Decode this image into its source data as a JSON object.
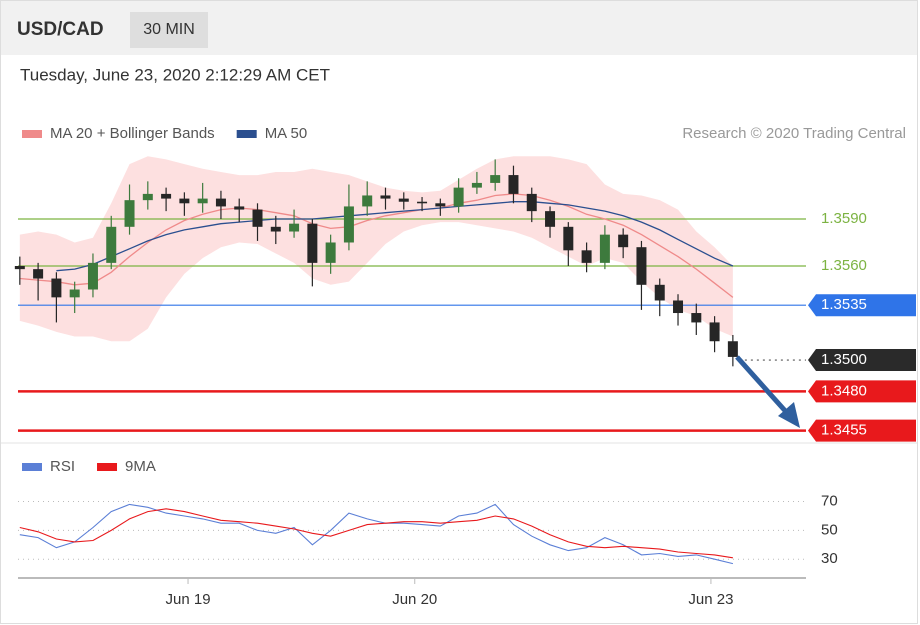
{
  "header": {
    "symbol": "USD/CAD",
    "interval": "30 MIN",
    "timestamp": "Tuesday, June 23, 2020 2:12:29 AM CET"
  },
  "chart_data": [
    {
      "type": "candlestick",
      "credit": "Research © 2020 Trading Central",
      "up_color": "#3d7a3d",
      "down_color": "#262626",
      "xlim": [
        -0.1,
        43
      ],
      "ylim": [
        1.3449,
        1.3634
      ],
      "open": [
        1.356,
        1.3558,
        1.3552,
        1.354,
        1.3545,
        1.3562,
        1.3585,
        1.3602,
        1.3606,
        1.3603,
        1.36,
        1.3603,
        1.3598,
        1.3596,
        1.3585,
        1.3582,
        1.3587,
        1.3562,
        1.3575,
        1.3598,
        1.3605,
        1.3603,
        1.3601,
        1.36,
        1.3598,
        1.361,
        1.3613,
        1.3618,
        1.3606,
        1.3595,
        1.3585,
        1.357,
        1.3562,
        1.358,
        1.3572,
        1.3548,
        1.3538,
        1.353,
        1.3524,
        1.3512
      ],
      "high": [
        1.3566,
        1.3562,
        1.3556,
        1.355,
        1.3568,
        1.3592,
        1.3612,
        1.3614,
        1.361,
        1.3607,
        1.3613,
        1.3608,
        1.3603,
        1.36,
        1.3592,
        1.3596,
        1.359,
        1.358,
        1.3612,
        1.3614,
        1.361,
        1.3607,
        1.3604,
        1.3603,
        1.3616,
        1.362,
        1.3628,
        1.3624,
        1.361,
        1.3598,
        1.3588,
        1.3575,
        1.3586,
        1.3584,
        1.3576,
        1.3552,
        1.3542,
        1.3536,
        1.3528,
        1.3516
      ],
      "low": [
        1.3548,
        1.3538,
        1.3524,
        1.353,
        1.354,
        1.3558,
        1.358,
        1.3596,
        1.3595,
        1.3592,
        1.3594,
        1.359,
        1.3588,
        1.3576,
        1.3574,
        1.3578,
        1.3547,
        1.3555,
        1.357,
        1.3592,
        1.3596,
        1.3596,
        1.3595,
        1.3592,
        1.3594,
        1.3606,
        1.3608,
        1.36,
        1.3588,
        1.3578,
        1.356,
        1.3556,
        1.3558,
        1.3565,
        1.3532,
        1.3528,
        1.3522,
        1.3516,
        1.3505,
        1.3496
      ],
      "close": [
        1.3558,
        1.3552,
        1.354,
        1.3545,
        1.3562,
        1.3585,
        1.3602,
        1.3606,
        1.3603,
        1.36,
        1.3603,
        1.3598,
        1.3596,
        1.3585,
        1.3582,
        1.3587,
        1.3562,
        1.3575,
        1.3598,
        1.3605,
        1.3603,
        1.3601,
        1.36,
        1.3598,
        1.361,
        1.3613,
        1.3618,
        1.3606,
        1.3595,
        1.3585,
        1.357,
        1.3562,
        1.358,
        1.3572,
        1.3548,
        1.3538,
        1.353,
        1.3524,
        1.3512,
        1.3502
      ],
      "overlays": [
        {
          "name": "MA 20 + Bollinger Bands",
          "color": "#ef8a8a",
          "band_color": "#fde0e0",
          "values": [
            1.3552,
            1.3551,
            1.355,
            1.3548,
            1.3549,
            1.3556,
            1.3566,
            1.3575,
            1.3583,
            1.3589,
            1.3593,
            1.3596,
            1.3597,
            1.3596,
            1.3594,
            1.3592,
            1.3587,
            1.3584,
            1.3585,
            1.3589,
            1.3592,
            1.3594,
            1.3596,
            1.3597,
            1.36,
            1.3602,
            1.3605,
            1.3606,
            1.3605,
            1.3602,
            1.3598,
            1.3593,
            1.359,
            1.3586,
            1.358,
            1.3573,
            1.3566,
            1.3558,
            1.3549,
            1.354
          ],
          "upper": [
            1.358,
            1.3582,
            1.358,
            1.3575,
            1.3578,
            1.36,
            1.3625,
            1.363,
            1.3628,
            1.3625,
            1.3622,
            1.362,
            1.3618,
            1.3618,
            1.362,
            1.362,
            1.3622,
            1.362,
            1.3618,
            1.3614,
            1.361,
            1.3608,
            1.3607,
            1.3608,
            1.3615,
            1.3622,
            1.3628,
            1.363,
            1.363,
            1.363,
            1.3628,
            1.3625,
            1.3612,
            1.3606,
            1.3605,
            1.3602,
            1.3596,
            1.3582,
            1.3572,
            1.356
          ],
          "lower": [
            1.3525,
            1.3522,
            1.3518,
            1.3515,
            1.3515,
            1.3512,
            1.3512,
            1.352,
            1.354,
            1.3555,
            1.3565,
            1.3572,
            1.3575,
            1.3574,
            1.3568,
            1.3562,
            1.3552,
            1.3548,
            1.355,
            1.3562,
            1.3574,
            1.3582,
            1.3586,
            1.3588,
            1.3588,
            1.3586,
            1.3584,
            1.3582,
            1.3578,
            1.3572,
            1.3566,
            1.356,
            1.3565,
            1.3562,
            1.355,
            1.354,
            1.3532,
            1.3528,
            1.352,
            1.3515
          ]
        },
        {
          "name": "MA 50",
          "color": "#2b4f8f",
          "values": [
            null,
            null,
            1.3557,
            1.3558,
            1.3561,
            1.3566,
            1.3571,
            1.3576,
            1.358,
            1.3583,
            1.3585,
            1.3587,
            1.3588,
            1.3589,
            1.359,
            1.359,
            1.359,
            1.3591,
            1.3592,
            1.3593,
            1.3594,
            1.3595,
            1.3596,
            1.3597,
            1.3598,
            1.3599,
            1.36,
            1.3601,
            1.3601,
            1.36,
            1.3599,
            1.3597,
            1.3595,
            1.3592,
            1.3588,
            1.3583,
            1.3577,
            1.3571,
            1.3565,
            1.356
          ]
        }
      ],
      "levels": [
        {
          "value": 1.359,
          "label": "1.3590",
          "color": "#7cb342",
          "line": "thin",
          "boxed": false
        },
        {
          "value": 1.356,
          "label": "1.3560",
          "color": "#7cb342",
          "line": "thin",
          "boxed": false
        },
        {
          "value": 1.3535,
          "label": "1.3535",
          "color": "#2f74e8",
          "line": "thin",
          "boxed": true
        },
        {
          "value": 1.35,
          "label": "1.3500",
          "color": "#2a2a2a",
          "line": "dotted",
          "boxed": true
        },
        {
          "value": 1.348,
          "label": "1.3480",
          "color": "#e8191c",
          "line": "thick",
          "boxed": true
        },
        {
          "value": 1.3455,
          "label": "1.3455",
          "color": "#e8191c",
          "line": "thick",
          "boxed": true
        }
      ]
    },
    {
      "type": "line",
      "xlim": [
        -0.1,
        43
      ],
      "ylim": [
        17,
        78
      ],
      "yticks": [
        70,
        50,
        30
      ],
      "xticks": [
        {
          "value": 9.2,
          "label": "Jun 19"
        },
        {
          "value": 21.6,
          "label": "Jun 20"
        },
        {
          "value": 37.8,
          "label": "Jun 23"
        }
      ],
      "series": [
        {
          "name": "RSI",
          "color": "#5b7fd6",
          "values": [
            47,
            45,
            38,
            42,
            52,
            63,
            68,
            66,
            62,
            60,
            58,
            55,
            55,
            50,
            48,
            52,
            40,
            50,
            62,
            58,
            55,
            55,
            54,
            53,
            60,
            62,
            68,
            54,
            46,
            40,
            36,
            38,
            45,
            40,
            33,
            34,
            32,
            33,
            30,
            27
          ]
        },
        {
          "name": "9MA",
          "color": "#e8191c",
          "values": [
            52,
            49,
            44,
            42,
            43,
            50,
            58,
            63,
            65,
            63,
            60,
            57,
            56,
            55,
            53,
            51,
            48,
            46,
            50,
            54,
            55,
            56,
            56,
            55,
            56,
            57,
            60,
            58,
            53,
            47,
            42,
            39,
            38,
            39,
            38,
            37,
            35,
            34,
            33,
            31
          ]
        }
      ]
    }
  ]
}
